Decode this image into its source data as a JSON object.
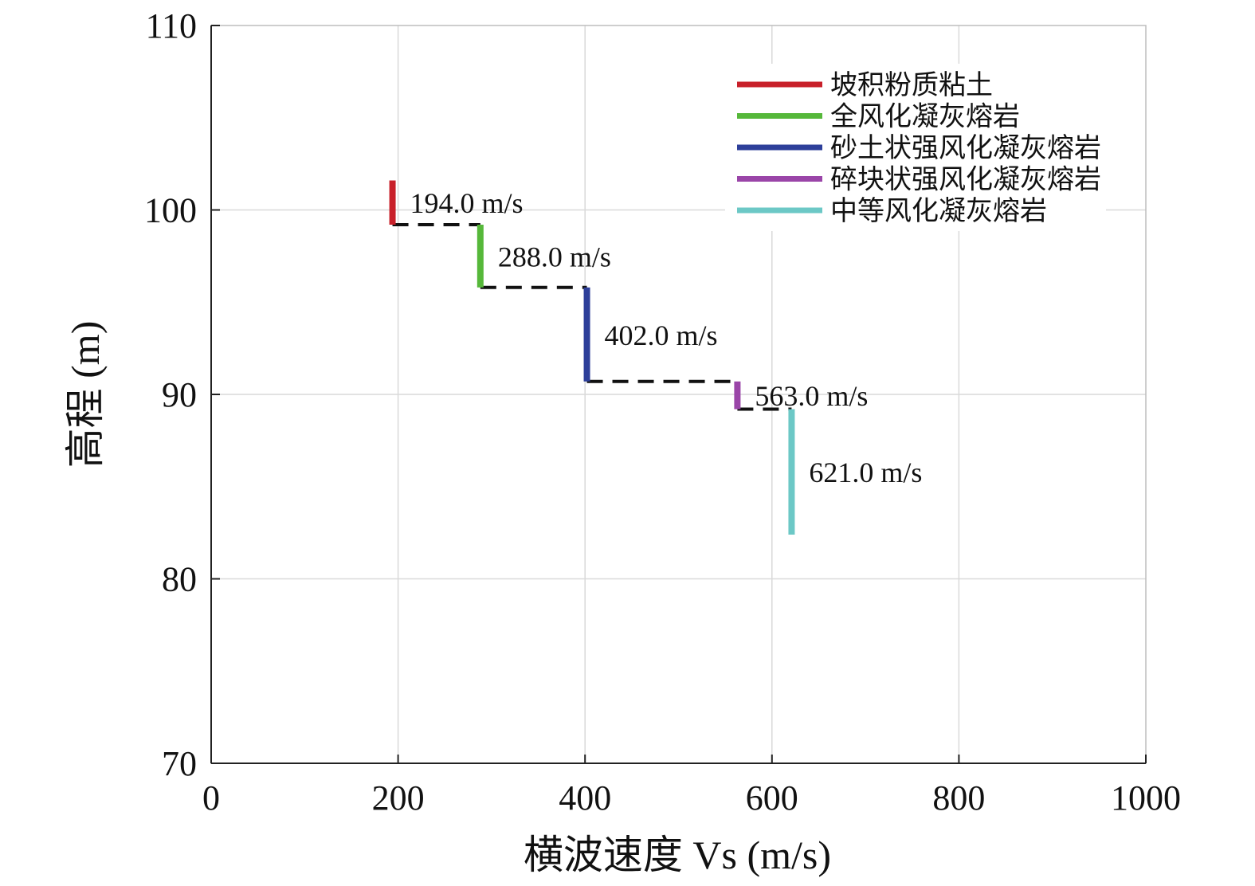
{
  "chart_data": {
    "type": "line",
    "title": "",
    "xlabel": "横波速度 Vs (m/s)",
    "ylabel": "高程 (m)",
    "xlim": [
      0,
      1000
    ],
    "ylim": [
      70,
      110
    ],
    "xticks": [
      "0",
      "200",
      "400",
      "600",
      "800",
      "1000"
    ],
    "yticks": [
      "70",
      "80",
      "90",
      "100",
      "110"
    ],
    "grid": true,
    "legend_position": "top-right",
    "series": [
      {
        "name": "坡积粉质粘土",
        "color": "#c8202a",
        "x": 194,
        "top": 101.6,
        "bottom": 99.2,
        "label": "194.0 m/s"
      },
      {
        "name": "全风化凝灰熔岩",
        "color": "#56b83a",
        "x": 288,
        "top": 99.2,
        "bottom": 95.8,
        "label": "288.0 m/s"
      },
      {
        "name": "砂土状强风化凝灰熔岩",
        "color": "#2d3f9a",
        "x": 402,
        "top": 95.8,
        "bottom": 90.7,
        "label": "402.0 m/s"
      },
      {
        "name": "碎块状强风化凝灰熔岩",
        "color": "#9a45a8",
        "x": 563,
        "top": 90.7,
        "bottom": 89.2,
        "label": "563.0 m/s"
      },
      {
        "name": "中等风化凝灰熔岩",
        "color": "#6cc8c6",
        "x": 621,
        "top": 89.2,
        "bottom": 82.4,
        "label": "621.0 m/s"
      }
    ],
    "connectors": [
      {
        "y": 99.2,
        "x_from": 194,
        "x_to": 288
      },
      {
        "y": 95.8,
        "x_from": 288,
        "x_to": 402
      },
      {
        "y": 90.7,
        "x_from": 402,
        "x_to": 563
      },
      {
        "y": 89.2,
        "x_from": 563,
        "x_to": 621
      }
    ]
  }
}
